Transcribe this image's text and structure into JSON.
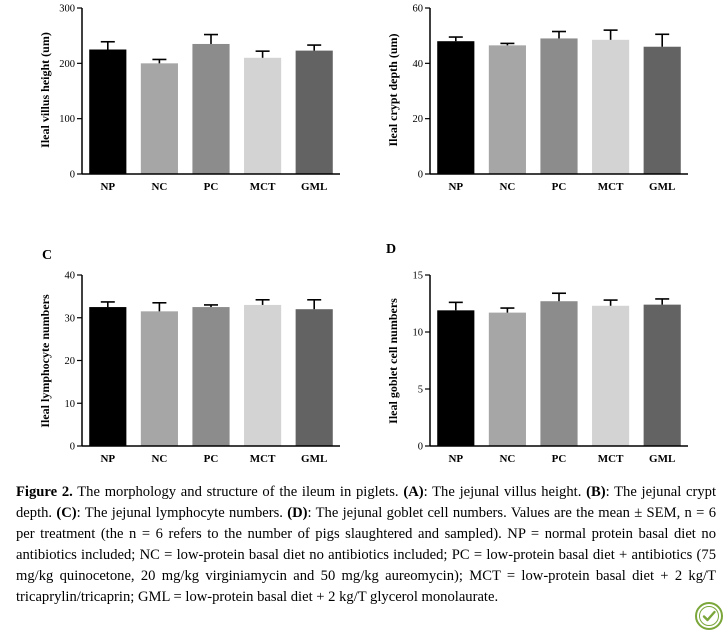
{
  "chart_data": [
    {
      "type": "bar",
      "panel_letter": "",
      "ylabel": "Ileal villus height (um)",
      "categories": [
        "NP",
        "NC",
        "PC",
        "MCT",
        "GML"
      ],
      "values": [
        225,
        200,
        235,
        210,
        223
      ],
      "errors": [
        14,
        7,
        17,
        12,
        10
      ],
      "ylim": [
        0,
        300
      ],
      "yticks": [
        0,
        100,
        200,
        300
      ],
      "bar_colors": [
        "#000000",
        "#a6a6a6",
        "#8c8c8c",
        "#d3d3d3",
        "#636363"
      ]
    },
    {
      "type": "bar",
      "panel_letter": "",
      "ylabel": "Ileal crypt depth (um)",
      "categories": [
        "NP",
        "NC",
        "PC",
        "MCT",
        "GML"
      ],
      "values": [
        48,
        46.5,
        49,
        48.5,
        46
      ],
      "errors": [
        1.5,
        0.7,
        2.5,
        3.5,
        4.5
      ],
      "ylim": [
        0,
        60
      ],
      "yticks": [
        0,
        20,
        40,
        60
      ],
      "bar_colors": [
        "#000000",
        "#a6a6a6",
        "#8c8c8c",
        "#d3d3d3",
        "#636363"
      ]
    },
    {
      "type": "bar",
      "panel_letter": "C",
      "ylabel": "Ileal lymphocyte numbers",
      "categories": [
        "NP",
        "NC",
        "PC",
        "MCT",
        "GML"
      ],
      "values": [
        32.5,
        31.5,
        32.5,
        33,
        32
      ],
      "errors": [
        1.2,
        2.0,
        0.5,
        1.2,
        2.2
      ],
      "ylim": [
        0,
        40
      ],
      "yticks": [
        0,
        10,
        20,
        30,
        40
      ],
      "bar_colors": [
        "#000000",
        "#a6a6a6",
        "#8c8c8c",
        "#d3d3d3",
        "#636363"
      ]
    },
    {
      "type": "bar",
      "panel_letter": "D",
      "ylabel": "Ileal goblet cell numbers",
      "categories": [
        "NP",
        "NC",
        "PC",
        "MCT",
        "GML"
      ],
      "values": [
        11.9,
        11.7,
        12.7,
        12.3,
        12.4
      ],
      "errors": [
        0.7,
        0.4,
        0.7,
        0.5,
        0.5
      ],
      "ylim": [
        0,
        15
      ],
      "yticks": [
        0,
        5,
        10,
        15
      ],
      "bar_colors": [
        "#000000",
        "#a6a6a6",
        "#8c8c8c",
        "#d3d3d3",
        "#636363"
      ]
    }
  ],
  "caption": {
    "figure_label": "Figure 2.",
    "title_text": " The morphology and structure of the ileum in piglets. ",
    "parts": [
      {
        "label": "(A)",
        "text": ": The jejunal villus height. "
      },
      {
        "label": "(B)",
        "text": ": The jejunal crypt depth. "
      },
      {
        "label": "(C)",
        "text": ": The jejunal lymphocyte numbers. "
      },
      {
        "label": "(D)",
        "text": ": The jejunal goblet cell numbers."
      }
    ],
    "body": "Values are the mean ± SEM, n = 6 per treatment (the n = 6 refers to the number of pigs slaughtered and sampled). NP = normal protein basal diet no antibiotics included; NC = low-protein basal diet no antibiotics included; PC = low-protein basal diet + antibiotics (75 mg/kg quinocetone, 20 mg/kg virginiamycin and 50 mg/kg aureomycin); MCT = low-protein basal diet + 2 kg/T tricaprylin/tricaprin; GML = low-protein basal diet + 2 kg/T glycerol monolaurate."
  }
}
